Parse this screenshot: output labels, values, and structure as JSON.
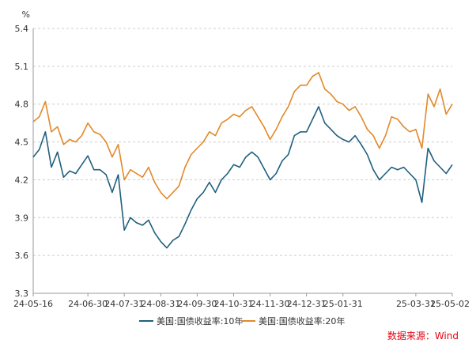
{
  "chart_data": {
    "type": "line",
    "unit": "%",
    "ylim": [
      3.3,
      5.4
    ],
    "y_ticks": [
      "3.3",
      "3.6",
      "3.9",
      "4.2",
      "4.5",
      "4.8",
      "5.1",
      "5.4"
    ],
    "x_ticks": [
      "24-05-16",
      "24-06-30",
      "24-07-31",
      "24-08-31",
      "24-09-30",
      "24-10-31",
      "24-11-30",
      "24-12-31",
      "25-01-31",
      "25-03-31",
      "25-05-02"
    ],
    "grid": "horizontal-dashed",
    "legend_position": "bottom",
    "x": [
      "24-05-16",
      "24-05-21",
      "24-05-26",
      "24-05-31",
      "24-06-05",
      "24-06-10",
      "24-06-15",
      "24-06-20",
      "24-06-25",
      "24-06-30",
      "24-07-05",
      "24-07-10",
      "24-07-15",
      "24-07-20",
      "24-07-25",
      "24-07-31",
      "24-08-05",
      "24-08-10",
      "24-08-15",
      "24-08-20",
      "24-08-25",
      "24-08-31",
      "24-09-05",
      "24-09-10",
      "24-09-15",
      "24-09-20",
      "24-09-25",
      "24-09-30",
      "24-10-05",
      "24-10-10",
      "24-10-15",
      "24-10-20",
      "24-10-25",
      "24-10-31",
      "24-11-05",
      "24-11-10",
      "24-11-15",
      "24-11-20",
      "24-11-25",
      "24-11-30",
      "24-12-05",
      "24-12-10",
      "24-12-15",
      "24-12-20",
      "24-12-25",
      "24-12-31",
      "25-01-05",
      "25-01-10",
      "25-01-15",
      "25-01-20",
      "25-01-25",
      "25-01-31",
      "25-02-05",
      "25-02-10",
      "25-02-15",
      "25-02-20",
      "25-02-25",
      "25-03-01",
      "25-03-05",
      "25-03-10",
      "25-03-15",
      "25-03-20",
      "25-03-25",
      "25-03-31",
      "25-04-05",
      "25-04-10",
      "25-04-15",
      "25-04-20",
      "25-04-25",
      "25-05-02"
    ],
    "series": [
      {
        "name": "美国:国债收益率:10年",
        "color": "#1f5f7e",
        "values": [
          4.38,
          4.44,
          4.58,
          4.3,
          4.42,
          4.22,
          4.27,
          4.25,
          4.32,
          4.39,
          4.28,
          4.28,
          4.24,
          4.1,
          4.24,
          3.8,
          3.9,
          3.86,
          3.84,
          3.88,
          3.78,
          3.71,
          3.66,
          3.72,
          3.75,
          3.85,
          3.96,
          4.05,
          4.1,
          4.18,
          4.1,
          4.2,
          4.25,
          4.32,
          4.3,
          4.38,
          4.42,
          4.38,
          4.29,
          4.2,
          4.25,
          4.35,
          4.4,
          4.55,
          4.58,
          4.58,
          4.68,
          4.78,
          4.65,
          4.6,
          4.55,
          4.52,
          4.5,
          4.55,
          4.48,
          4.4,
          4.28,
          4.2,
          4.25,
          4.3,
          4.28,
          4.3,
          4.25,
          4.2,
          4.02,
          4.45,
          4.35,
          4.3,
          4.25,
          4.32
        ]
      },
      {
        "name": "美国:国债收益率:20年",
        "color": "#e2892a",
        "values": [
          4.66,
          4.7,
          4.82,
          4.58,
          4.62,
          4.48,
          4.52,
          4.5,
          4.55,
          4.65,
          4.58,
          4.56,
          4.5,
          4.38,
          4.48,
          4.2,
          4.28,
          4.25,
          4.22,
          4.3,
          4.18,
          4.1,
          4.05,
          4.1,
          4.15,
          4.3,
          4.4,
          4.45,
          4.5,
          4.58,
          4.55,
          4.65,
          4.68,
          4.72,
          4.7,
          4.75,
          4.78,
          4.7,
          4.62,
          4.52,
          4.6,
          4.7,
          4.78,
          4.9,
          4.95,
          4.95,
          5.02,
          5.05,
          4.92,
          4.88,
          4.82,
          4.8,
          4.75,
          4.78,
          4.7,
          4.6,
          4.55,
          4.45,
          4.55,
          4.7,
          4.68,
          4.62,
          4.58,
          4.6,
          4.45,
          4.88,
          4.78,
          4.92,
          4.72,
          4.8
        ]
      }
    ]
  },
  "source": "数据来源：Wind"
}
